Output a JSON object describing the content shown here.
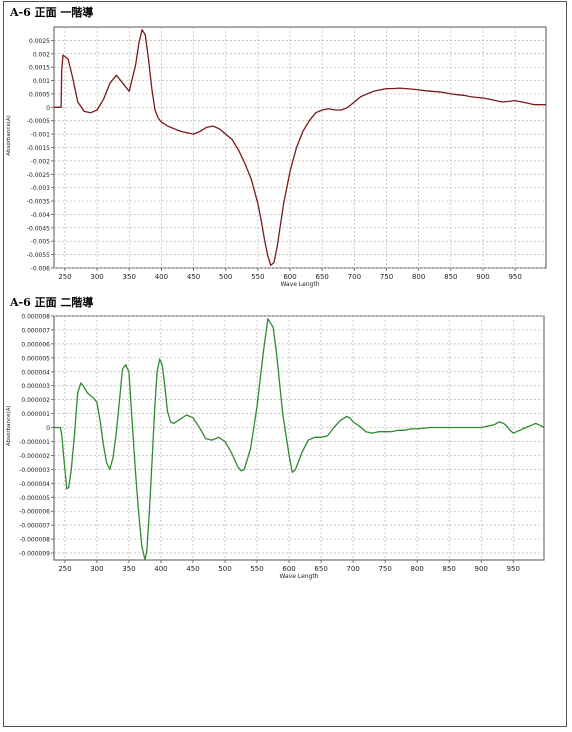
{
  "page": {
    "background": "#ffffff"
  },
  "chart_data": [
    {
      "type": "line",
      "title": "A-6 正面 一階導",
      "xlabel": "Wave Length",
      "ylabel": "Absorbance(A)",
      "xlim": [
        233,
        998
      ],
      "ylim": [
        -0.006,
        0.003
      ],
      "grid": true,
      "color": "#7a1a1a",
      "x_ticks": [
        250,
        300,
        350,
        400,
        450,
        500,
        550,
        600,
        650,
        700,
        750,
        800,
        850,
        900,
        950
      ],
      "y_ticks": [
        0.0025,
        0.002,
        0.0015,
        0.001,
        0.0005,
        0,
        -0.0005,
        -0.001,
        -0.0015,
        -0.002,
        -0.0025,
        -0.003,
        -0.0035,
        -0.004,
        -0.0045,
        -0.005,
        -0.0055,
        -0.006
      ],
      "y_tick_labels": [
        "0.0025",
        "0.002",
        "0.0015",
        "0.001",
        "0.0005",
        "0",
        "-0.0005",
        "-0.001",
        "-0.0015",
        "-0.002",
        "-0.0025",
        "-0.003",
        "-0.0035",
        "-0.004",
        "-0.0045",
        "-0.005",
        "-0.0055",
        "-0.006"
      ],
      "series": [
        {
          "x": [
            233,
            244,
            245,
            247,
            255,
            262,
            270,
            280,
            290,
            300,
            310,
            320,
            330,
            340,
            350,
            360,
            365,
            370,
            375,
            380,
            385,
            390,
            395,
            400,
            410,
            420,
            430,
            440,
            450,
            460,
            470,
            480,
            490,
            500,
            510,
            520,
            530,
            540,
            550,
            555,
            560,
            565,
            570,
            575,
            580,
            585,
            590,
            600,
            610,
            620,
            630,
            640,
            650,
            660,
            670,
            680,
            690,
            700,
            710,
            720,
            730,
            740,
            750,
            760,
            770,
            780,
            790,
            800,
            810,
            820,
            830,
            840,
            850,
            860,
            870,
            880,
            890,
            900,
            910,
            920,
            930,
            940,
            950,
            960,
            970,
            980,
            990,
            998
          ],
          "y": [
            0,
            0,
            0.0014,
            0.00195,
            0.0018,
            0.0011,
            0.0002,
            -0.00015,
            -0.0002,
            -0.0001,
            0.0003,
            0.0009,
            0.0012,
            0.0009,
            0.0006,
            0.0016,
            0.0024,
            0.0029,
            0.0027,
            0.0018,
            0.0007,
            -0.0001,
            -0.0004,
            -0.00055,
            -0.0007,
            -0.0008,
            -0.0009,
            -0.00095,
            -0.001,
            -0.0009,
            -0.00075,
            -0.0007,
            -0.0008,
            -0.001,
            -0.0012,
            -0.0016,
            -0.0021,
            -0.0027,
            -0.0036,
            -0.0042,
            -0.0049,
            -0.0055,
            -0.0059,
            -0.0058,
            -0.0052,
            -0.0044,
            -0.0036,
            -0.0024,
            -0.0015,
            -0.0009,
            -0.0005,
            -0.0002,
            -0.0001,
            -5e-05,
            -0.0001,
            -0.0001,
            0,
            0.0002,
            0.0004,
            0.0005,
            0.0006,
            0.00065,
            0.0007,
            0.0007,
            0.00072,
            0.0007,
            0.00068,
            0.00065,
            0.00062,
            0.0006,
            0.00058,
            0.00055,
            0.0005,
            0.00047,
            0.00045,
            0.0004,
            0.00037,
            0.00035,
            0.0003,
            0.00025,
            0.0002,
            0.00022,
            0.00025,
            0.0002,
            0.00015,
            0.0001,
            0.0001,
            0.0001
          ]
        }
      ]
    },
    {
      "type": "line",
      "title": "A-6 正面 二階導",
      "xlabel": "Wave Length",
      "ylabel": "Absorbance(A)",
      "xlim": [
        233,
        998
      ],
      "ylim": [
        -9.5e-06,
        8e-06
      ],
      "grid": true,
      "color": "#2e8b2e",
      "x_ticks": [
        250,
        300,
        350,
        400,
        450,
        500,
        550,
        600,
        650,
        700,
        750,
        800,
        850,
        900,
        950
      ],
      "y_ticks": [
        8e-06,
        7e-06,
        6e-06,
        5e-06,
        4e-06,
        3e-06,
        2e-06,
        1e-06,
        0,
        -1e-06,
        -2e-06,
        -3e-06,
        -4e-06,
        -5e-06,
        -6e-06,
        -7e-06,
        -8e-06,
        -9e-06
      ],
      "y_tick_labels": [
        "0.000008",
        "0.000007",
        "0.000006",
        "0.000005",
        "0.000004",
        "0.000003",
        "0.000002",
        "0.000001",
        "0",
        "-0.000001",
        "-0.000002",
        "-0.000003",
        "-0.000004",
        "-0.000005",
        "-0.000006",
        "-0.000007",
        "-0.000008",
        "-0.000009"
      ],
      "series": [
        {
          "x": [
            233,
            243,
            245,
            249,
            253,
            256,
            260,
            265,
            270,
            275,
            280,
            285,
            290,
            295,
            300,
            305,
            310,
            315,
            320,
            325,
            330,
            335,
            340,
            345,
            350,
            355,
            360,
            365,
            370,
            375,
            378,
            382,
            386,
            390,
            394,
            398,
            402,
            406,
            410,
            415,
            420,
            430,
            440,
            450,
            460,
            470,
            480,
            490,
            500,
            510,
            520,
            525,
            530,
            540,
            550,
            560,
            567,
            575,
            580,
            590,
            600,
            605,
            610,
            620,
            630,
            640,
            650,
            660,
            670,
            680,
            690,
            695,
            700,
            710,
            720,
            730,
            740,
            750,
            760,
            770,
            780,
            790,
            800,
            820,
            840,
            860,
            880,
            900,
            910,
            920,
            928,
            935,
            940,
            945,
            950,
            960,
            970,
            980,
            985,
            990,
            998
          ],
          "y": [
            0,
            0,
            -5e-07,
            -2.5e-06,
            -4.4e-06,
            -4.3e-06,
            -3e-06,
            -5e-07,
            2.5e-06,
            3.2e-06,
            2.9e-06,
            2.5e-06,
            2.3e-06,
            2.1e-06,
            1.8e-06,
            5e-07,
            -1.2e-06,
            -2.5e-06,
            -3e-06,
            -2.2e-06,
            -5e-07,
            1.8e-06,
            4.2e-06,
            4.5e-06,
            4e-06,
            5e-07,
            -3e-06,
            -6e-06,
            -8.5e-06,
            -9.5e-06,
            -8.8e-06,
            -6e-06,
            -2.5e-06,
            1.2e-06,
            4e-06,
            4.9e-06,
            4.5e-06,
            3e-06,
            1.2e-06,
            4e-07,
            3e-07,
            6e-07,
            9e-07,
            7e-07,
            0,
            -8e-07,
            -9e-07,
            -7e-07,
            -1e-06,
            -1.8e-06,
            -2.8e-06,
            -3.1e-06,
            -3e-06,
            -1.5e-06,
            1.5e-06,
            5.5e-06,
            7.8e-06,
            7.2e-06,
            5.5e-06,
            1e-06,
            -2e-06,
            -3.2e-06,
            -3e-06,
            -1.8e-06,
            -9e-07,
            -7e-07,
            -7e-07,
            -6e-07,
            0,
            5e-07,
            8e-07,
            7e-07,
            4e-07,
            1e-07,
            -3e-07,
            -4e-07,
            -3e-07,
            -3e-07,
            -3e-07,
            -2e-07,
            -2e-07,
            -1e-07,
            -1e-07,
            0,
            0,
            0,
            0,
            0,
            1e-07,
            2e-07,
            4e-07,
            3e-07,
            1e-07,
            -2e-07,
            -4e-07,
            -2e-07,
            0,
            2e-07,
            3e-07,
            2e-07,
            0
          ]
        }
      ]
    }
  ]
}
